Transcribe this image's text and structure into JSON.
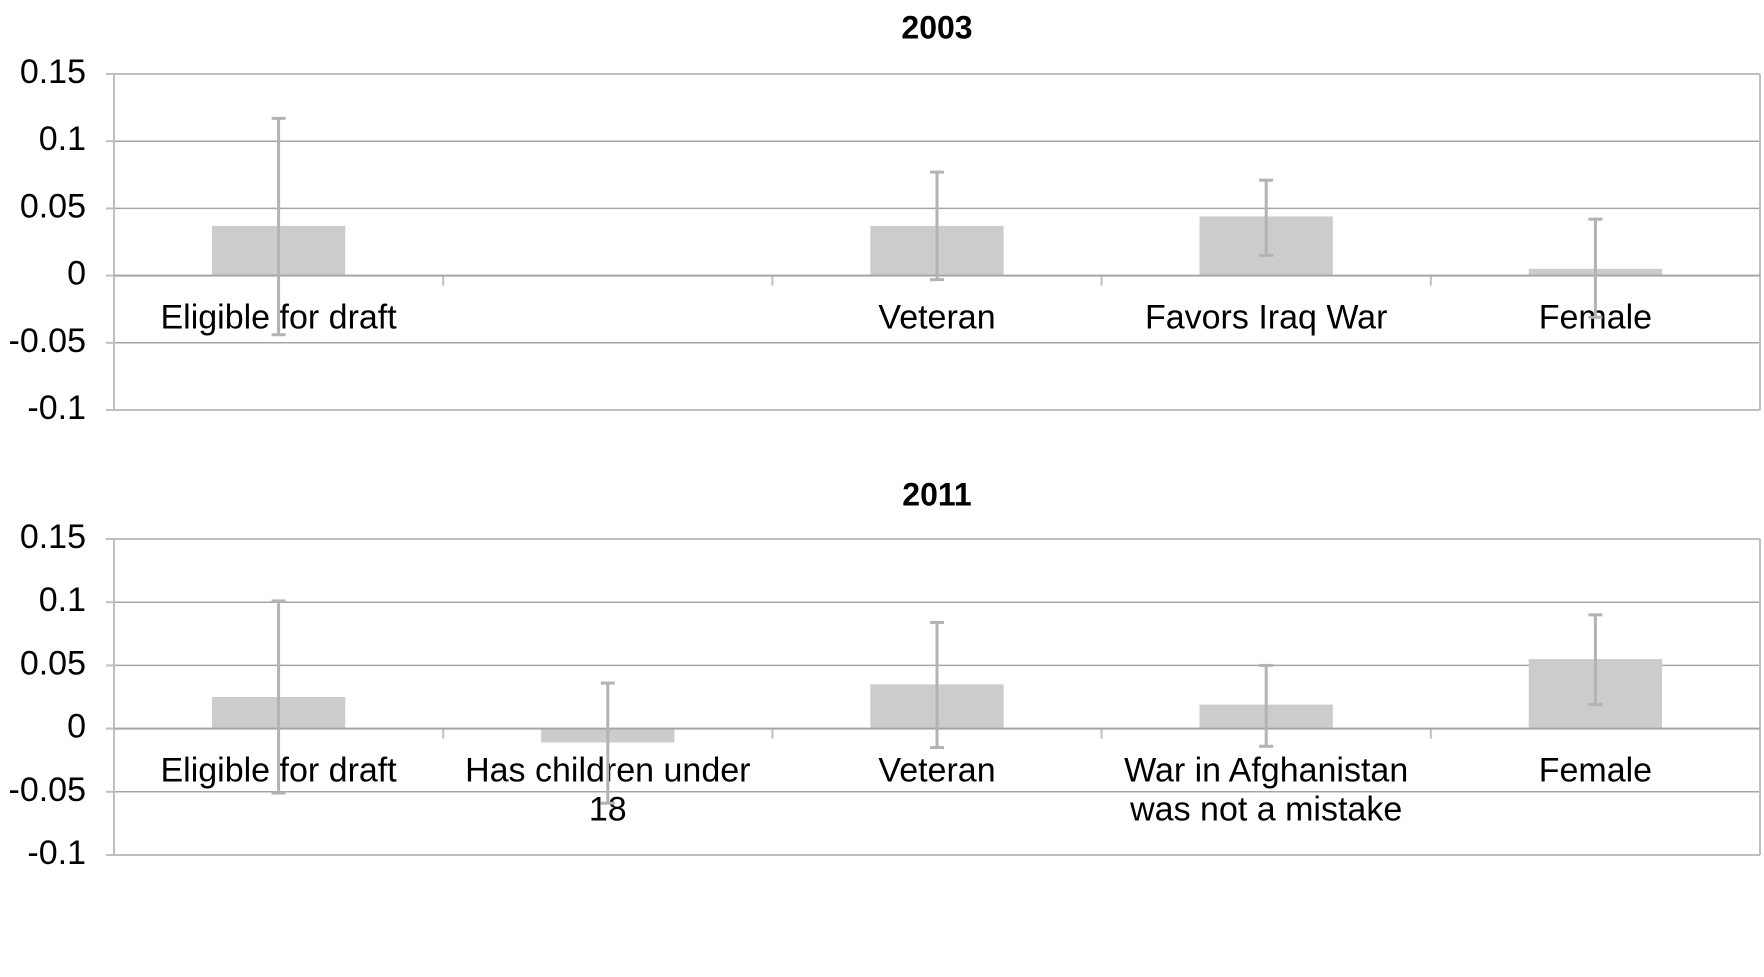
{
  "chart_data": [
    {
      "type": "bar",
      "title": "2003",
      "xlabel": "",
      "ylabel": "",
      "ylim": [
        -0.1,
        0.15
      ],
      "yticks": [
        "0.15",
        "0.1",
        "0.05",
        "0",
        "-0.05",
        "-0.1"
      ],
      "ytick_values": [
        0.15,
        0.1,
        0.05,
        0,
        -0.05,
        -0.1
      ],
      "grid": true,
      "categories": [
        [
          "Eligible for draft"
        ],
        [],
        [
          "Veteran"
        ],
        [
          "Favors Iraq War"
        ],
        [
          "Female"
        ]
      ],
      "values": [
        0.037,
        null,
        0.037,
        0.044,
        0.005
      ],
      "error_low": [
        -0.044,
        null,
        -0.003,
        0.015,
        -0.031
      ],
      "error_high": [
        0.117,
        null,
        0.077,
        0.071,
        0.042
      ]
    },
    {
      "type": "bar",
      "title": "2011",
      "xlabel": "",
      "ylabel": "",
      "ylim": [
        -0.1,
        0.15
      ],
      "yticks": [
        "0.15",
        "0.1",
        "0.05",
        "0",
        "-0.05",
        "-0.1"
      ],
      "ytick_values": [
        0.15,
        0.1,
        0.05,
        0,
        -0.05,
        -0.1
      ],
      "grid": true,
      "categories": [
        [
          "Eligible for draft"
        ],
        [
          "Has children under",
          "18"
        ],
        [
          "Veteran"
        ],
        [
          "War in Afghanistan",
          "was not a mistake"
        ],
        [
          "Female"
        ]
      ],
      "values": [
        0.025,
        -0.011,
        0.035,
        0.019,
        0.055
      ],
      "error_low": [
        -0.051,
        -0.059,
        -0.015,
        -0.014,
        0.019
      ],
      "error_high": [
        0.101,
        0.036,
        0.084,
        0.05,
        0.09
      ]
    }
  ],
  "colors": {
    "bar": "#cccccc",
    "error_bar": "#b3b3b3",
    "axis": "#bfbfbf",
    "gridline": "#a6a6a6"
  }
}
